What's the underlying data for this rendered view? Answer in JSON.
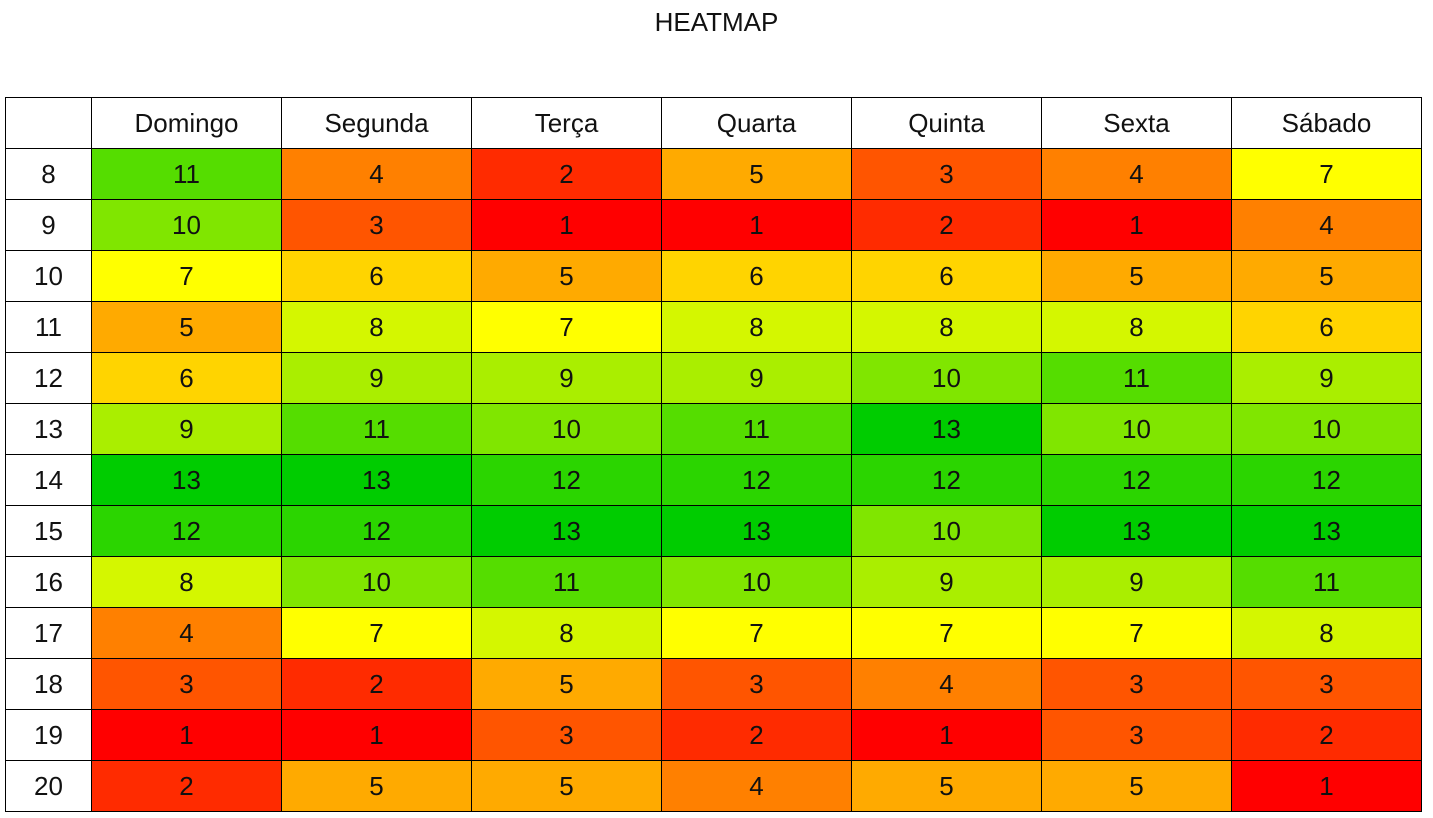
{
  "chart_data": {
    "type": "heatmap",
    "title": "HEATMAP",
    "x": [
      "Domingo",
      "Segunda",
      "Terça",
      "Quarta",
      "Quinta",
      "Sexta",
      "Sábado"
    ],
    "y": [
      "8",
      "9",
      "10",
      "11",
      "12",
      "13",
      "14",
      "15",
      "16",
      "17",
      "18",
      "19",
      "20"
    ],
    "values": [
      [
        11,
        4,
        2,
        5,
        3,
        4,
        7
      ],
      [
        10,
        3,
        1,
        1,
        2,
        1,
        4
      ],
      [
        7,
        6,
        5,
        6,
        6,
        5,
        5
      ],
      [
        5,
        8,
        7,
        8,
        8,
        8,
        6
      ],
      [
        6,
        9,
        9,
        9,
        10,
        11,
        9
      ],
      [
        9,
        11,
        10,
        11,
        13,
        10,
        10
      ],
      [
        13,
        13,
        12,
        12,
        12,
        12,
        12
      ],
      [
        12,
        12,
        13,
        13,
        10,
        13,
        13
      ],
      [
        8,
        10,
        11,
        10,
        9,
        9,
        11
      ],
      [
        4,
        7,
        8,
        7,
        7,
        7,
        8
      ],
      [
        3,
        2,
        5,
        3,
        4,
        3,
        3
      ],
      [
        1,
        1,
        3,
        2,
        1,
        3,
        2
      ],
      [
        2,
        5,
        5,
        4,
        5,
        5,
        1
      ]
    ],
    "color_scale": {
      "1": "#ff0000",
      "2": "#ff2b00",
      "3": "#ff5500",
      "4": "#ff8000",
      "5": "#ffaa00",
      "6": "#ffd400",
      "7": "#ffff00",
      "8": "#d4f700",
      "9": "#aaee00",
      "10": "#80e600",
      "11": "#55dd00",
      "12": "#2bd500",
      "13": "#00cc00"
    }
  }
}
